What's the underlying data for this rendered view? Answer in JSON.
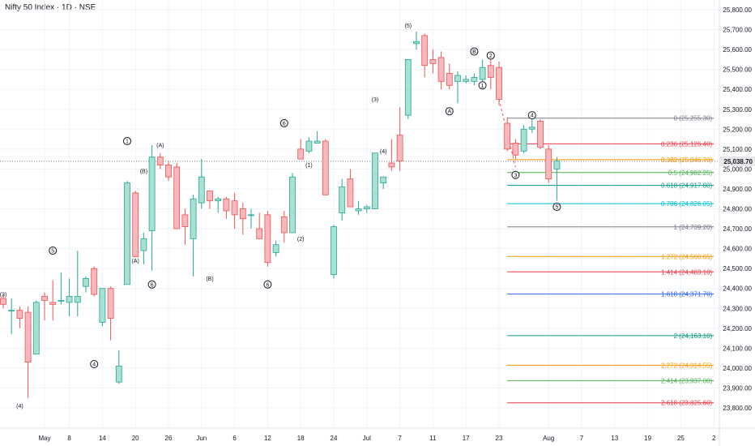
{
  "header": {
    "title": "Nifty 50 Index · 1D · NSE"
  },
  "colors": {
    "up_fill": "#a8e0d2",
    "up_stroke": "#26a69a",
    "down_fill": "#f6b7bd",
    "down_stroke": "#ef5350",
    "grid": "#f0f3fa",
    "axis_text": "#131722",
    "price_line": "#787b86",
    "price_badge": "#e8e8e8"
  },
  "chart_data": {
    "type": "candlestick",
    "title": "Nifty 50 Index · 1D · NSE",
    "ylim": [
      23700,
      25900
    ],
    "y_ticks": [
      23800,
      23900,
      24000,
      24100,
      24200,
      24300,
      24400,
      24500,
      24600,
      24700,
      24800,
      24900,
      25000,
      25100,
      25200,
      25300,
      25400,
      25500,
      25600,
      25700,
      25800
    ],
    "y_tick_labels": [
      "23,800.00",
      "23,900.00",
      "24,000.00",
      "24,100.00",
      "24,200.00",
      "24,300.00",
      "24,400.00",
      "24,500.00",
      "24,600.00",
      "24,700.00",
      "24,800.00",
      "24,900.00",
      "25,000.00",
      "25,100.00",
      "25,200.00",
      "25,300.00",
      "25,400.00",
      "25,500.00",
      "25,600.00",
      "25,700.00",
      "25,800.00"
    ],
    "x_ticks": [
      {
        "i": 5,
        "label": "May"
      },
      {
        "i": 8,
        "label": "8"
      },
      {
        "i": 12,
        "label": "14"
      },
      {
        "i": 16,
        "label": "20"
      },
      {
        "i": 20,
        "label": "26"
      },
      {
        "i": 24,
        "label": "Jun"
      },
      {
        "i": 28,
        "label": "6"
      },
      {
        "i": 32,
        "label": "12"
      },
      {
        "i": 36,
        "label": "18"
      },
      {
        "i": 40,
        "label": "24"
      },
      {
        "i": 44,
        "label": "Jul"
      },
      {
        "i": 48,
        "label": "7"
      },
      {
        "i": 52,
        "label": "11"
      },
      {
        "i": 56,
        "label": "17"
      },
      {
        "i": 60,
        "label": "23"
      },
      {
        "i": 66,
        "label": "Aug"
      },
      {
        "i": 70,
        "label": "7"
      },
      {
        "i": 74,
        "label": "13"
      },
      {
        "i": 78,
        "label": "19"
      },
      {
        "i": 82,
        "label": "25"
      },
      {
        "i": 86,
        "label": "2"
      }
    ],
    "n_slots": 87,
    "last_price": 25038.7,
    "last_price_label": "25,038.70",
    "candles": [
      {
        "i": 0,
        "o": 24350,
        "h": 24370,
        "l": 24300,
        "c": 24320
      },
      {
        "i": 1,
        "o": 24290,
        "h": 24350,
        "l": 24170,
        "c": 24290
      },
      {
        "i": 2,
        "o": 24290,
        "h": 24310,
        "l": 24200,
        "c": 24250
      },
      {
        "i": 3,
        "o": 24280,
        "h": 24310,
        "l": 23850,
        "c": 24030
      },
      {
        "i": 4,
        "o": 24070,
        "h": 24340,
        "l": 24070,
        "c": 24330
      },
      {
        "i": 5,
        "o": 24360,
        "h": 24380,
        "l": 24240,
        "c": 24340
      },
      {
        "i": 6,
        "o": 24330,
        "h": 24440,
        "l": 24240,
        "c": 24320
      },
      {
        "i": 7,
        "o": 24340,
        "h": 24480,
        "l": 24320,
        "c": 24340
      },
      {
        "i": 8,
        "o": 24330,
        "h": 24450,
        "l": 24260,
        "c": 24360
      },
      {
        "i": 9,
        "o": 24330,
        "h": 24590,
        "l": 24260,
        "c": 24360
      },
      {
        "i": 10,
        "o": 24410,
        "h": 24460,
        "l": 24380,
        "c": 24450
      },
      {
        "i": 11,
        "o": 24500,
        "h": 24510,
        "l": 24360,
        "c": 24370
      },
      {
        "i": 12,
        "o": 24230,
        "h": 24400,
        "l": 24210,
        "c": 24400
      },
      {
        "i": 13,
        "o": 24400,
        "h": 24410,
        "l": 24140,
        "c": 24250
      },
      {
        "i": 14,
        "o": 23930,
        "h": 24090,
        "l": 23920,
        "c": 24010
      },
      {
        "i": 15,
        "o": 24420,
        "h": 24940,
        "l": 24420,
        "c": 24930
      },
      {
        "i": 16,
        "o": 24880,
        "h": 24890,
        "l": 24560,
        "c": 24560
      },
      {
        "i": 17,
        "o": 24590,
        "h": 24680,
        "l": 24520,
        "c": 24650
      },
      {
        "i": 18,
        "o": 24690,
        "h": 25120,
        "l": 24490,
        "c": 25060
      },
      {
        "i": 19,
        "o": 25060,
        "h": 25080,
        "l": 25000,
        "c": 25020
      },
      {
        "i": 20,
        "o": 25020,
        "h": 25040,
        "l": 24940,
        "c": 24960
      },
      {
        "i": 21,
        "o": 25010,
        "h": 25030,
        "l": 24700,
        "c": 24700
      },
      {
        "i": 22,
        "o": 24770,
        "h": 24800,
        "l": 24620,
        "c": 24710
      },
      {
        "i": 23,
        "o": 24650,
        "h": 24870,
        "l": 24460,
        "c": 24850
      },
      {
        "i": 24,
        "o": 24830,
        "h": 25050,
        "l": 24800,
        "c": 24960
      },
      {
        "i": 25,
        "o": 24890,
        "h": 24880,
        "l": 24800,
        "c": 24840
      },
      {
        "i": 26,
        "o": 24840,
        "h": 24860,
        "l": 24780,
        "c": 24850
      },
      {
        "i": 27,
        "o": 24850,
        "h": 24860,
        "l": 24750,
        "c": 24790
      },
      {
        "i": 28,
        "o": 24840,
        "h": 24880,
        "l": 24700,
        "c": 24770
      },
      {
        "i": 29,
        "o": 24800,
        "h": 24830,
        "l": 24670,
        "c": 24750
      },
      {
        "i": 30,
        "o": 24770,
        "h": 24800,
        "l": 24700,
        "c": 24770
      },
      {
        "i": 31,
        "o": 24700,
        "h": 24780,
        "l": 24650,
        "c": 24650
      },
      {
        "i": 32,
        "o": 24770,
        "h": 24790,
        "l": 24510,
        "c": 24530
      },
      {
        "i": 33,
        "o": 24580,
        "h": 24640,
        "l": 24560,
        "c": 24620
      },
      {
        "i": 34,
        "o": 24760,
        "h": 24790,
        "l": 24630,
        "c": 24680
      },
      {
        "i": 35,
        "o": 24680,
        "h": 24980,
        "l": 24680,
        "c": 24960
      },
      {
        "i": 36,
        "o": 25100,
        "h": 25150,
        "l": 25050,
        "c": 25050
      },
      {
        "i": 37,
        "o": 25090,
        "h": 25160,
        "l": 25080,
        "c": 25140
      },
      {
        "i": 38,
        "o": 25130,
        "h": 25190,
        "l": 25130,
        "c": 25140
      },
      {
        "i": 39,
        "o": 25140,
        "h": 25150,
        "l": 24870,
        "c": 24870
      },
      {
        "i": 40,
        "o": 24470,
        "h": 24720,
        "l": 24450,
        "c": 24710
      },
      {
        "i": 41,
        "o": 24780,
        "h": 24950,
        "l": 24740,
        "c": 24910
      },
      {
        "i": 42,
        "o": 24950,
        "h": 25000,
        "l": 24810,
        "c": 24810
      },
      {
        "i": 43,
        "o": 24790,
        "h": 24840,
        "l": 24770,
        "c": 24800
      },
      {
        "i": 44,
        "o": 24800,
        "h": 24820,
        "l": 24780,
        "c": 24810
      },
      {
        "i": 45,
        "o": 24800,
        "h": 25080,
        "l": 24800,
        "c": 25080
      },
      {
        "i": 46,
        "o": 24930,
        "h": 24960,
        "l": 24900,
        "c": 24960
      },
      {
        "i": 47,
        "o": 25030,
        "h": 25150,
        "l": 24990,
        "c": 25010
      },
      {
        "i": 48,
        "o": 25170,
        "h": 25310,
        "l": 24990,
        "c": 25040
      },
      {
        "i": 49,
        "o": 25270,
        "h": 25550,
        "l": 25250,
        "c": 25550
      },
      {
        "i": 50,
        "o": 25630,
        "h": 25690,
        "l": 25600,
        "c": 25640
      },
      {
        "i": 51,
        "o": 25670,
        "h": 25680,
        "l": 25460,
        "c": 25520
      },
      {
        "i": 52,
        "o": 25550,
        "h": 25600,
        "l": 25480,
        "c": 25530
      },
      {
        "i": 53,
        "o": 25560,
        "h": 25590,
        "l": 25400,
        "c": 25440
      },
      {
        "i": 54,
        "o": 25480,
        "h": 25530,
        "l": 25400,
        "c": 25420
      },
      {
        "i": 55,
        "o": 25440,
        "h": 25490,
        "l": 25330,
        "c": 25470
      },
      {
        "i": 56,
        "o": 25440,
        "h": 25470,
        "l": 25430,
        "c": 25450
      },
      {
        "i": 57,
        "o": 25440,
        "h": 25480,
        "l": 25420,
        "c": 25460
      },
      {
        "i": 58,
        "o": 25450,
        "h": 25550,
        "l": 25440,
        "c": 25510
      },
      {
        "i": 59,
        "o": 25520,
        "h": 25550,
        "l": 25400,
        "c": 25460
      },
      {
        "i": 60,
        "o": 25510,
        "h": 25540,
        "l": 25320,
        "c": 25350
      },
      {
        "i": 61,
        "o": 25230,
        "h": 25260,
        "l": 25090,
        "c": 25100
      },
      {
        "i": 62,
        "o": 25130,
        "h": 25150,
        "l": 25050,
        "c": 25070
      },
      {
        "i": 63,
        "o": 25090,
        "h": 25220,
        "l": 25080,
        "c": 25200
      },
      {
        "i": 64,
        "o": 25200,
        "h": 25250,
        "l": 25180,
        "c": 25210
      },
      {
        "i": 65,
        "o": 25240,
        "h": 25250,
        "l": 25100,
        "c": 25110
      },
      {
        "i": 66,
        "o": 25100,
        "h": 25120,
        "l": 24930,
        "c": 24950
      },
      {
        "i": 67,
        "o": 25000,
        "h": 25060,
        "l": 24840,
        "c": 25040
      }
    ],
    "wave_labels": [
      {
        "i": 0,
        "y": 24370,
        "text": "(3)",
        "circle": false
      },
      {
        "i": 2,
        "y": 23810,
        "text": "(4)",
        "circle": false
      },
      {
        "i": 6,
        "y": 24590,
        "text": "5",
        "circle": true
      },
      {
        "i": 11,
        "y": 24020,
        "text": "4",
        "circle": true
      },
      {
        "i": 15,
        "y": 25140,
        "text": "1",
        "circle": true
      },
      {
        "i": 19,
        "y": 25120,
        "text": "(A)",
        "circle": false
      },
      {
        "i": 17,
        "y": 24990,
        "text": "(B)",
        "circle": false
      },
      {
        "i": 16,
        "y": 24540,
        "text": "(A)",
        "circle": false
      },
      {
        "i": 18,
        "y": 24420,
        "text": "6",
        "circle": true
      },
      {
        "i": 25,
        "y": 24450,
        "text": "(B)",
        "circle": false
      },
      {
        "i": 34,
        "y": 25230,
        "text": "6",
        "circle": true
      },
      {
        "i": 37,
        "y": 25020,
        "text": "(1)",
        "circle": false
      },
      {
        "i": 36,
        "y": 24650,
        "text": "(2)",
        "circle": false
      },
      {
        "i": 32,
        "y": 24420,
        "text": "6",
        "circle": true
      },
      {
        "i": 45,
        "y": 25350,
        "text": "(3)",
        "circle": false
      },
      {
        "i": 46,
        "y": 25090,
        "text": "(4)",
        "circle": false
      },
      {
        "i": 49,
        "y": 25720,
        "text": "(5)",
        "circle": false
      },
      {
        "i": 54,
        "y": 25290,
        "text": "A",
        "circle": true
      },
      {
        "i": 57,
        "y": 25590,
        "text": "B",
        "circle": true
      },
      {
        "i": 59,
        "y": 25570,
        "text": "2",
        "circle": true
      },
      {
        "i": 58,
        "y": 25420,
        "text": "1",
        "circle": true
      },
      {
        "i": 62,
        "y": 24970,
        "text": "3",
        "circle": true
      },
      {
        "i": 64,
        "y": 25270,
        "text": "4",
        "circle": true
      },
      {
        "i": 67,
        "y": 24810,
        "text": "5",
        "circle": true
      }
    ],
    "fib_start_i": 61,
    "fib_end_i": 86,
    "fib_levels": [
      {
        "price": 25255.3,
        "label": "0 (25,255.30)",
        "color": "#787b86"
      },
      {
        "price": 25126.4,
        "label": "0.236 (25,126.40)",
        "color": "#f23645"
      },
      {
        "price": 25046.7,
        "label": "0.382 (25,046.70)",
        "color": "#ff9800"
      },
      {
        "price": 24982.25,
        "label": "0.5 (24,982.25)",
        "color": "#4caf50"
      },
      {
        "price": 24917.8,
        "label": "0.618 (24,917.80)",
        "color": "#089981"
      },
      {
        "price": 24826.05,
        "label": "0.786 (24,826.05)",
        "color": "#00bcd4"
      },
      {
        "price": 24709.2,
        "label": "1 (24,709.20)",
        "color": "#787b86"
      },
      {
        "price": 24560.65,
        "label": "1.272 (24,560.65)",
        "color": "#ff9800"
      },
      {
        "price": 24483.1,
        "label": "1.414 (24,483.10)",
        "color": "#f23645"
      },
      {
        "price": 24371.7,
        "label": "1.618 (24,371.70)",
        "color": "#2962ff"
      },
      {
        "price": 24163.1,
        "label": "2 (24,163.10)",
        "color": "#089981"
      },
      {
        "price": 24014.55,
        "label": "2.272 (24,014.55)",
        "color": "#ff9800"
      },
      {
        "price": 23937.0,
        "label": "2.414 (23,937.00)",
        "color": "#4caf50"
      },
      {
        "price": 23825.6,
        "label": "2.618 (23,825.60)",
        "color": "#f23645"
      }
    ],
    "trend_line": [
      {
        "i": 60,
        "y": 25350
      },
      {
        "i": 62,
        "y": 25010
      }
    ]
  }
}
